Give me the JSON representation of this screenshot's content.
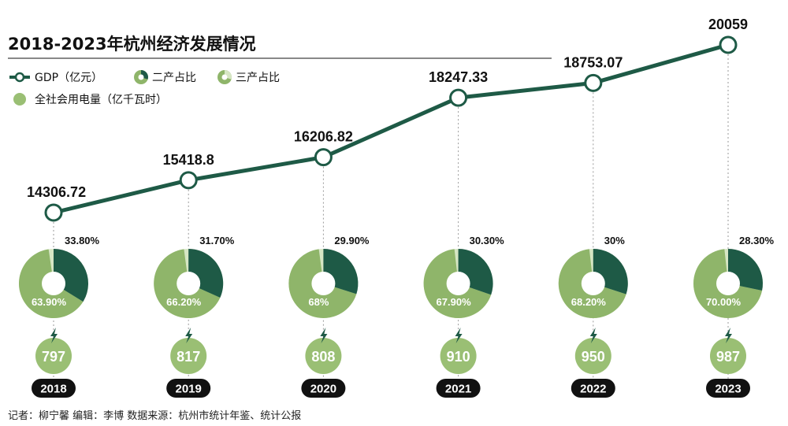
{
  "title": "2018-2023年杭州经济发展情况",
  "legend": {
    "gdp": "GDP（亿元）",
    "secondary": "二产占比",
    "tertiary": "三产占比",
    "electricity": "全社会用电量（亿千瓦时）"
  },
  "footer": "记者：柳宁馨 编辑：李博 数据来源：杭州市统计年鉴、统计公报",
  "colors": {
    "line": "#1e5a46",
    "secondary": "#1e5a46",
    "tertiary": "#8fb56a",
    "primary": "#d6e6c4",
    "electricity": "#9abf74",
    "year_pill": "#111111"
  },
  "icons": {
    "electricity": "lightning-icon"
  },
  "chart_data": {
    "type": "line",
    "title": "2018-2023年杭州经济发展情况",
    "x": [
      "2018",
      "2019",
      "2020",
      "2021",
      "2022",
      "2023"
    ],
    "gdp": {
      "name": "GDP（亿元）",
      "values": [
        14306.72,
        15418.8,
        16206.82,
        18247.33,
        18753.07,
        20059
      ],
      "labels": [
        "14306.72",
        "15418.8",
        "16206.82",
        "18247.33",
        "18753.07",
        "20059"
      ]
    },
    "secondary_share": {
      "name": "二产占比",
      "values": [
        33.8,
        31.7,
        29.9,
        30.3,
        30,
        28.3
      ],
      "labels": [
        "33.80%",
        "31.70%",
        "29.90%",
        "30.30%",
        "30%",
        "28.30%"
      ]
    },
    "tertiary_share": {
      "name": "三产占比",
      "values": [
        63.9,
        66.2,
        68,
        67.9,
        68.2,
        70.0
      ],
      "labels": [
        "63.90%",
        "66.20%",
        "68%",
        "67.90%",
        "68.20%",
        "70.00%"
      ]
    },
    "electricity": {
      "name": "全社会用电量（亿千瓦时）",
      "values": [
        797,
        817,
        808,
        910,
        950,
        987
      ],
      "labels": [
        "797",
        "817",
        "808",
        "910",
        "950",
        "987"
      ]
    }
  }
}
